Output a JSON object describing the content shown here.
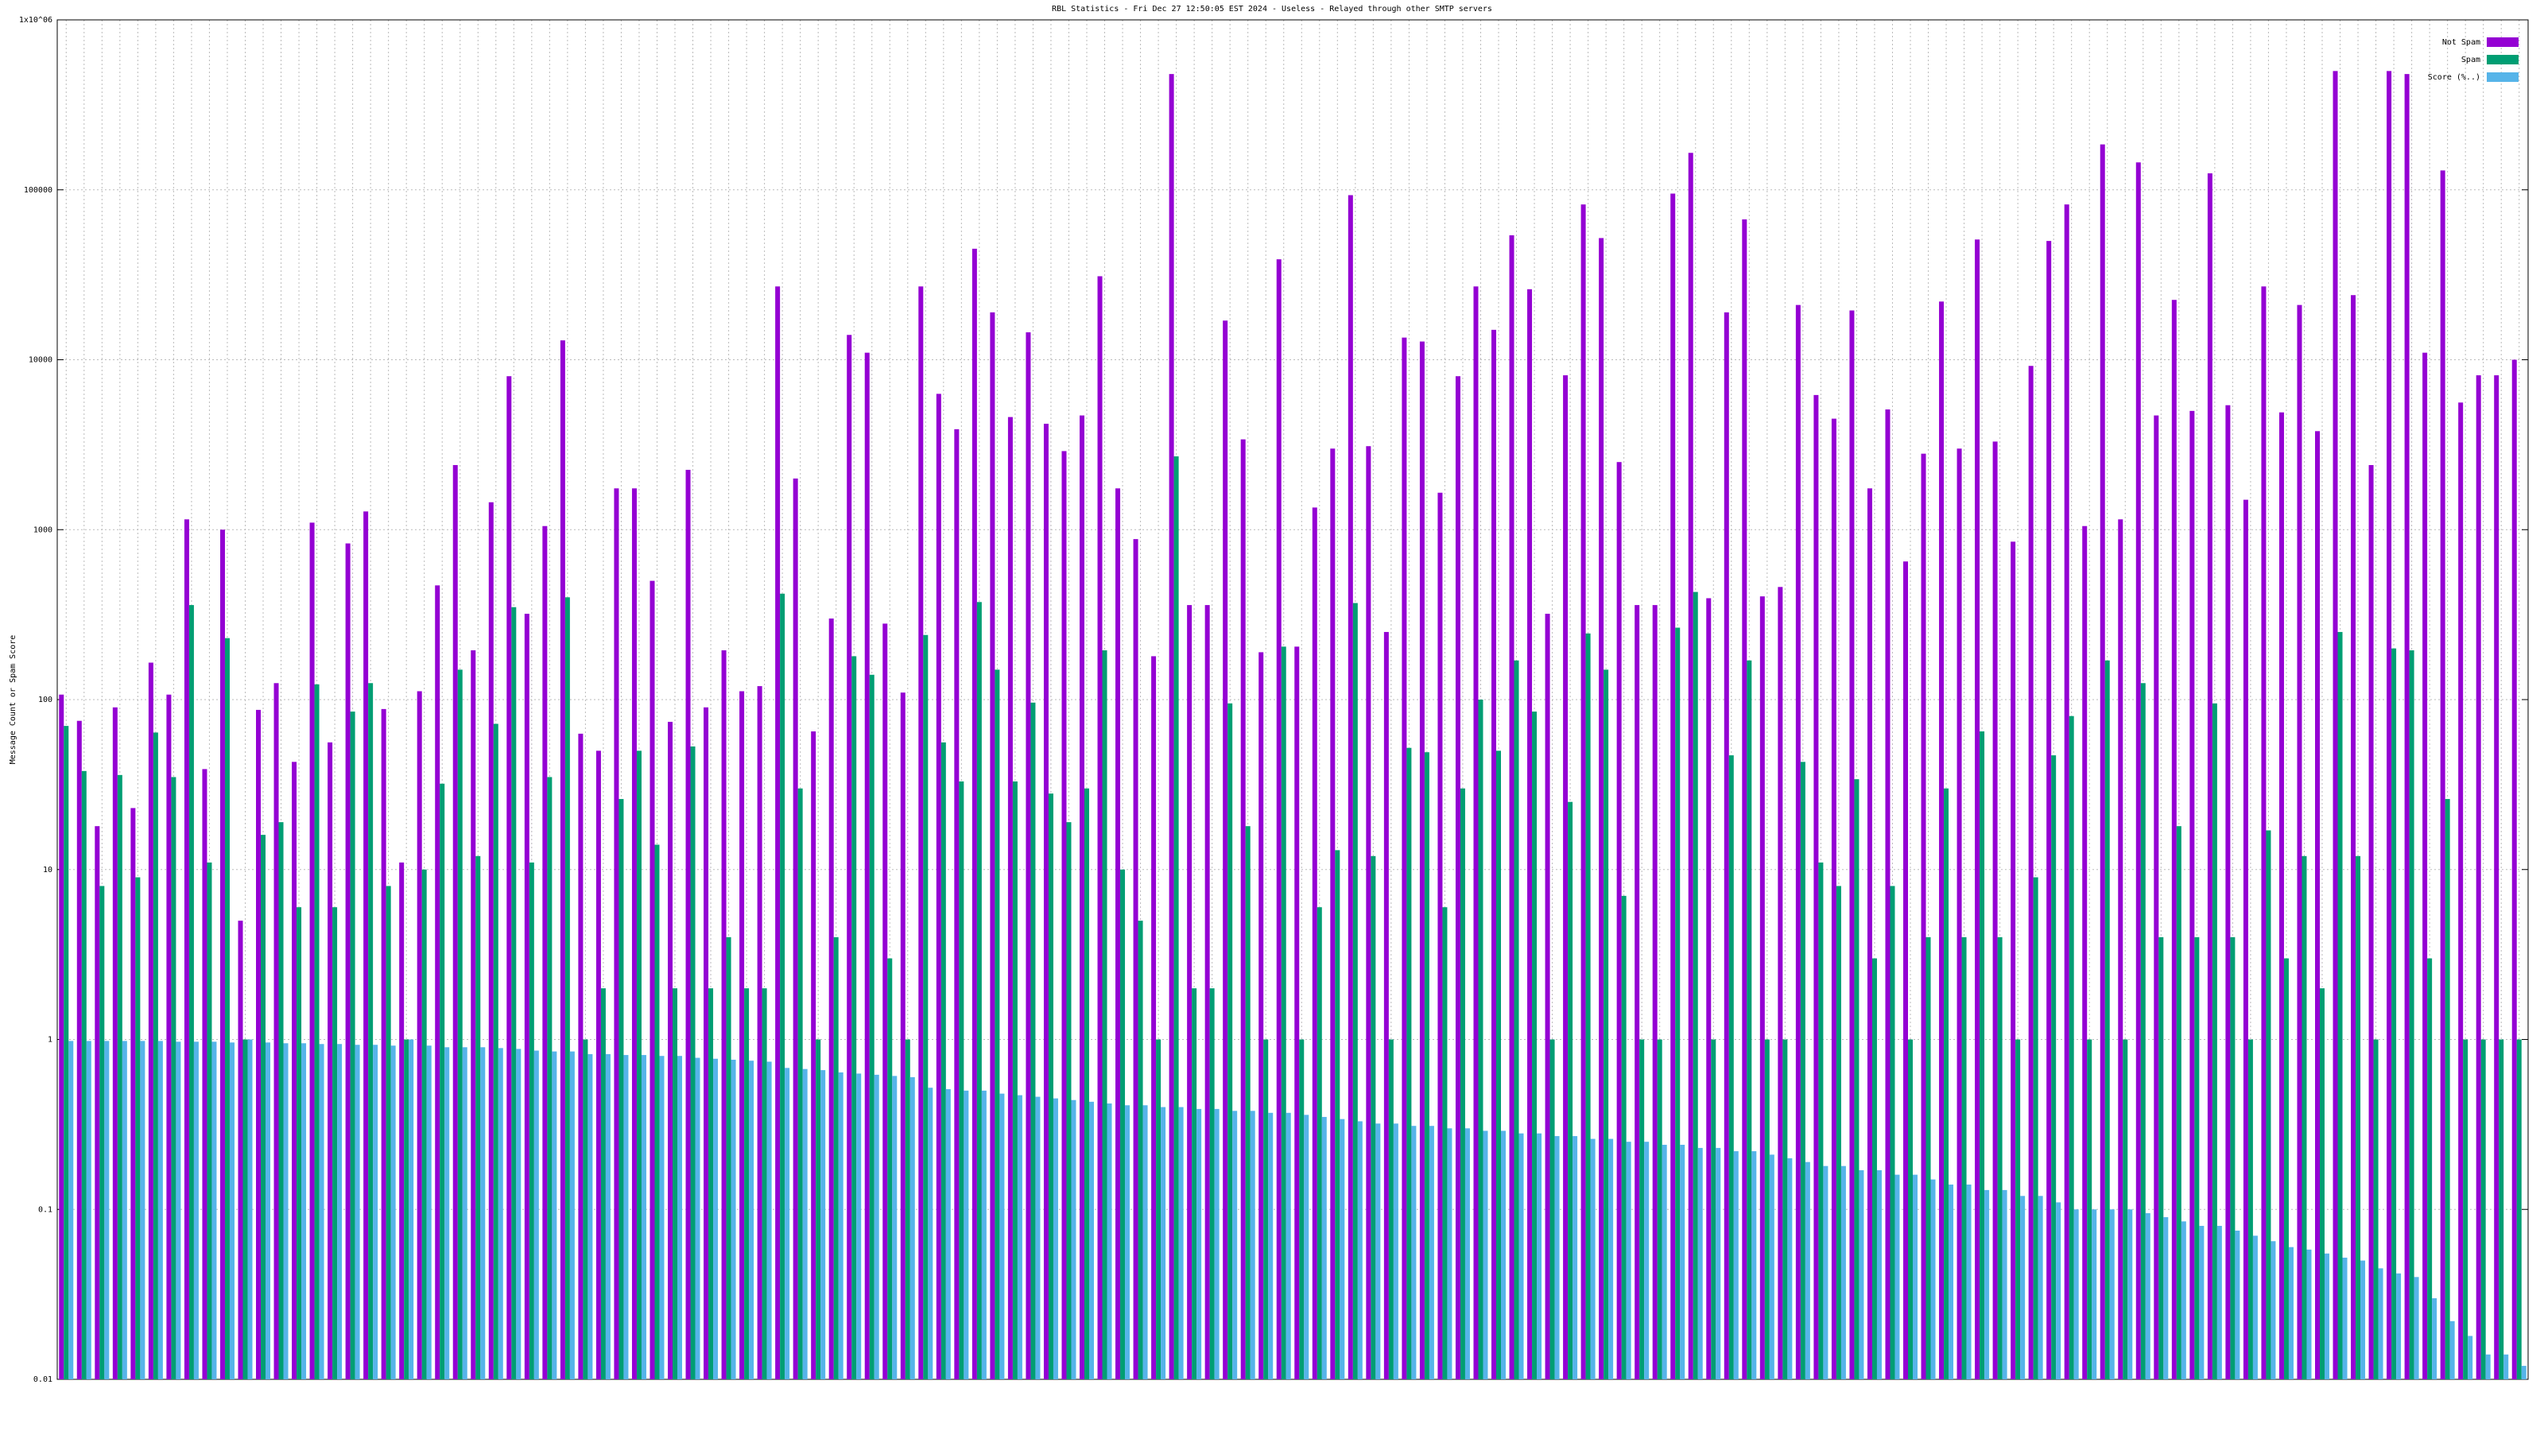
{
  "chart_data": {
    "type": "bar",
    "title": "RBL Statistics - Fri Dec 27 12:50:05 EST 2024 - Useless - Relayed through other SMTP servers",
    "y_label": "Message Count or Spam Score",
    "log_y": true,
    "grid": true,
    "legend": "top-right",
    "ylim": [
      0.01,
      1000000
    ],
    "yticks": [
      0.01,
      0.1,
      1,
      10,
      100,
      1000,
      10000,
      100000,
      {
        "value": 1000000,
        "label": "1x10^06"
      }
    ],
    "categories": [
      null,
      null,
      null,
      null,
      null,
      null,
      null,
      null,
      null,
      null,
      null,
      null,
      null,
      null,
      null,
      null,
      null,
      null,
      null,
      null,
      null,
      null,
      null,
      null,
      null,
      null,
      null,
      null,
      null,
      null,
      null,
      null,
      null,
      null,
      null,
      null,
      null,
      null,
      null,
      null,
      null,
      null,
      null,
      null,
      null,
      null,
      null,
      null,
      null,
      null,
      null,
      null,
      null,
      null,
      null,
      null,
      null,
      null,
      null,
      null,
      null,
      null,
      null,
      null,
      null,
      null,
      null,
      null,
      null,
      null,
      null,
      null,
      null,
      null,
      null,
      null,
      null,
      null,
      null,
      null,
      null,
      null,
      null,
      null,
      null,
      null,
      null,
      null,
      null,
      null,
      null,
      null,
      null,
      null,
      null,
      null,
      null,
      null,
      null,
      null,
      null,
      null,
      null,
      null,
      null,
      null,
      null,
      null,
      null,
      null,
      null,
      null,
      null,
      null,
      null,
      null,
      null,
      null,
      null,
      null,
      null,
      null,
      null,
      null,
      null,
      null,
      null,
      null,
      null,
      null,
      null,
      null,
      null,
      null,
      null,
      null,
      null,
      null
    ],
    "series": [
      {
        "name": "Not Spam",
        "color": "#9400d3",
        "values": [
          107,
          75,
          18,
          90,
          23,
          165,
          107,
          1150,
          39,
          1000,
          5,
          87,
          125,
          43,
          1100,
          56,
          830,
          1280,
          88,
          11,
          112,
          470,
          2400,
          195,
          1450,
          8000,
          320,
          1050,
          13000,
          63,
          50,
          1750,
          1750,
          500,
          74,
          2250,
          90,
          195,
          112,
          120,
          27000,
          2000,
          65,
          300,
          14000,
          11000,
          280,
          110,
          27000,
          6300,
          3900,
          45000,
          19000,
          4600,
          14500,
          4200,
          2900,
          4700,
          31000,
          1750,
          880,
          180,
          480000,
          360,
          360,
          17000,
          3400,
          190,
          39000,
          205,
          1350,
          3000,
          93000,
          3100,
          250,
          13500,
          12800,
          1650,
          8000,
          27000,
          15000,
          54000,
          26000,
          320,
          8100,
          82000,
          52000,
          2500,
          360,
          360,
          95000,
          165000,
          395,
          19000,
          67000,
          405,
          460,
          21000,
          6200,
          4500,
          19500,
          1750,
          5100,
          650,
          2800,
          22000,
          3000,
          51000,
          3300,
          850,
          9200,
          50000,
          82000,
          1050,
          185000,
          1150,
          145000,
          4700,
          22500,
          5000,
          125000,
          5400,
          1500,
          27000,
          4900,
          21000,
          3800,
          500000,
          24000,
          2400,
          500000,
          480000,
          11000,
          130000,
          5600,
          8100,
          8100,
          10000
        ]
      },
      {
        "name": "Spam",
        "color": "#009e73",
        "values": [
          70,
          38,
          8,
          36,
          9,
          64,
          35,
          360,
          11,
          230,
          1,
          16,
          19,
          6,
          123,
          6,
          85,
          125,
          8,
          1,
          10,
          32,
          150,
          12,
          72,
          350,
          11,
          35,
          400,
          1,
          2,
          26,
          50,
          14,
          2,
          53,
          2,
          4,
          2,
          2,
          420,
          30,
          1,
          4,
          180,
          140,
          3,
          1,
          240,
          56,
          33,
          375,
          150,
          33,
          96,
          28,
          19,
          30,
          195,
          10,
          5,
          1,
          2700,
          2,
          2,
          95,
          18,
          1,
          205,
          1,
          6,
          13,
          370,
          12,
          1,
          52,
          49,
          6,
          30,
          100,
          50,
          170,
          85,
          1,
          25,
          245,
          150,
          7,
          1,
          1,
          265,
          430,
          1,
          47,
          170,
          1,
          1,
          43,
          11,
          8,
          34,
          3,
          8,
          1,
          4,
          30,
          4,
          65,
          4,
          1,
          9,
          47,
          80,
          1,
          170,
          1,
          125,
          4,
          18,
          4,
          95,
          4,
          1,
          17,
          3,
          12,
          2,
          250,
          12,
          1,
          200,
          195,
          3,
          26,
          1,
          1,
          1,
          1
        ]
      },
      {
        "name": "Score (%..)",
        "color": "#56b4e9",
        "values": [
          0.98,
          0.98,
          0.98,
          0.98,
          0.98,
          0.98,
          0.97,
          0.97,
          0.97,
          0.96,
          1,
          0.96,
          0.95,
          0.95,
          0.94,
          0.94,
          0.93,
          0.93,
          0.92,
          1,
          0.92,
          0.9,
          0.9,
          0.9,
          0.89,
          0.88,
          0.86,
          0.85,
          0.85,
          0.82,
          0.82,
          0.81,
          0.81,
          0.8,
          0.8,
          0.78,
          0.77,
          0.76,
          0.75,
          0.74,
          0.68,
          0.67,
          0.66,
          0.64,
          0.63,
          0.62,
          0.61,
          0.6,
          0.52,
          0.51,
          0.5,
          0.5,
          0.48,
          0.47,
          0.46,
          0.45,
          0.44,
          0.43,
          0.42,
          0.41,
          0.41,
          0.4,
          0.4,
          0.39,
          0.39,
          0.38,
          0.38,
          0.37,
          0.37,
          0.36,
          0.35,
          0.34,
          0.33,
          0.32,
          0.32,
          0.31,
          0.31,
          0.3,
          0.3,
          0.29,
          0.29,
          0.28,
          0.28,
          0.27,
          0.27,
          0.26,
          0.26,
          0.25,
          0.25,
          0.24,
          0.24,
          0.23,
          0.23,
          0.22,
          0.22,
          0.21,
          0.2,
          0.19,
          0.18,
          0.18,
          0.17,
          0.17,
          0.16,
          0.16,
          0.15,
          0.14,
          0.14,
          0.13,
          0.13,
          0.12,
          0.12,
          0.11,
          0.1,
          0.1,
          0.1,
          0.1,
          0.095,
          0.09,
          0.085,
          0.08,
          0.08,
          0.075,
          0.07,
          0.065,
          0.06,
          0.058,
          0.055,
          0.052,
          0.05,
          0.045,
          0.042,
          0.04,
          0.03,
          0.022,
          0.018,
          0.014,
          0.014,
          0.012
        ]
      }
    ]
  }
}
